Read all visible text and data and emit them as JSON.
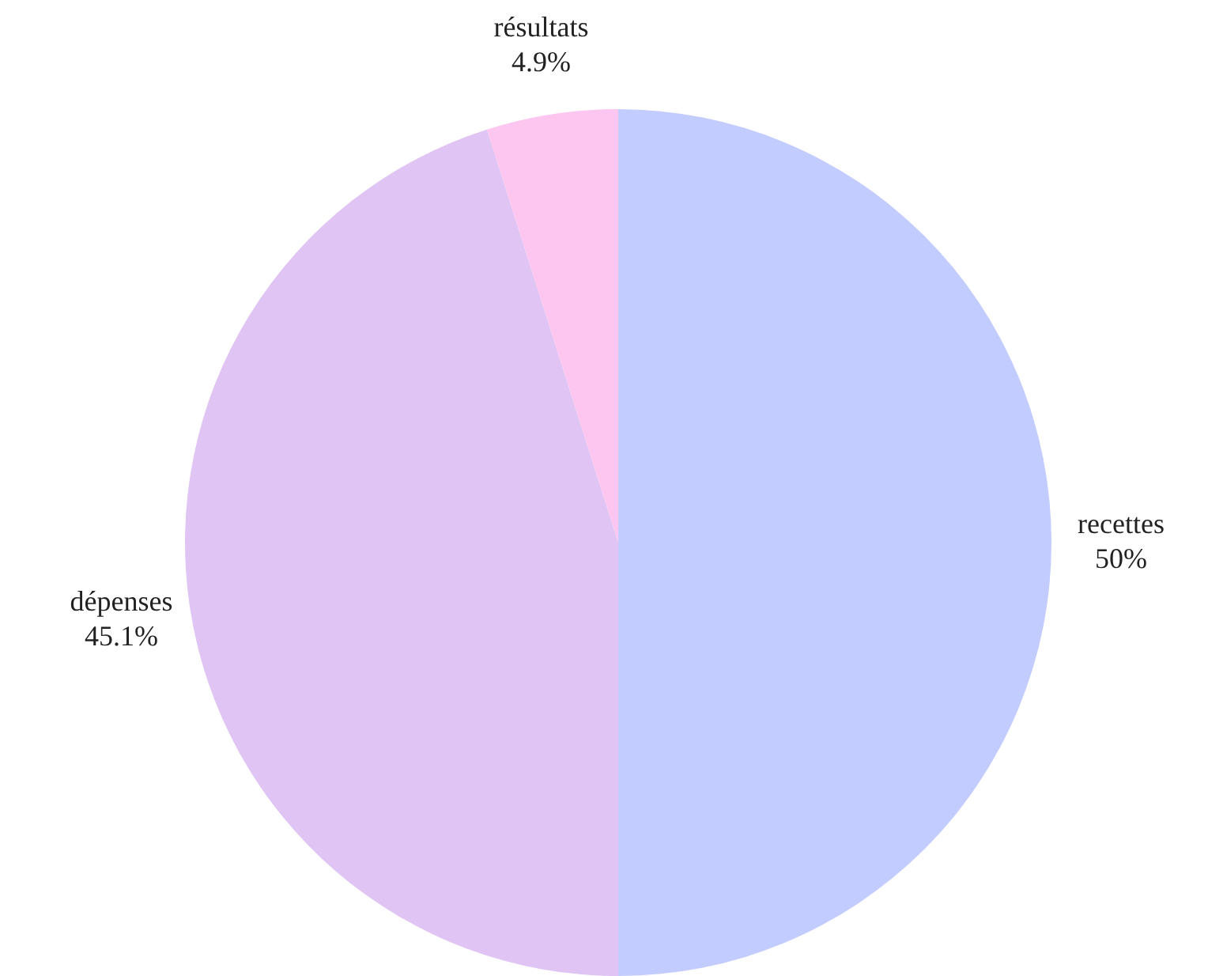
{
  "chart_data": {
    "type": "pie",
    "categories": [
      "recettes",
      "dépenses",
      "résultats"
    ],
    "values": [
      50,
      45.1,
      4.9
    ],
    "value_labels": [
      "50%",
      "45.1%",
      "4.9%"
    ],
    "colors": [
      "#c2ccff",
      "#e0c4f4",
      "#fdc6f0"
    ]
  }
}
